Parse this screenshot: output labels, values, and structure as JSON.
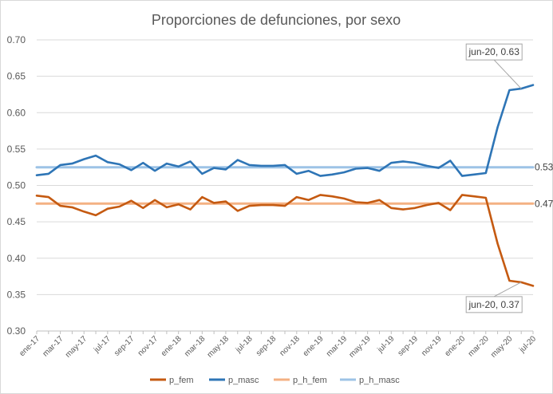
{
  "chart_data": {
    "type": "line",
    "title": "Proporciones de defunciones, por sexo",
    "xlabel": "",
    "ylabel": "",
    "ylim": [
      0.3,
      0.7
    ],
    "yticks": [
      "0.30",
      "0.35",
      "0.40",
      "0.45",
      "0.50",
      "0.55",
      "0.60",
      "0.65",
      "0.70"
    ],
    "categories": [
      "ene-17",
      "feb-17",
      "mar-17",
      "abr-17",
      "may-17",
      "jun-17",
      "jul-17",
      "ago-17",
      "sep-17",
      "oct-17",
      "nov-17",
      "dic-17",
      "ene-18",
      "feb-18",
      "mar-18",
      "abr-18",
      "may-18",
      "jun-18",
      "jul-18",
      "ago-18",
      "sep-18",
      "oct-18",
      "nov-18",
      "dic-18",
      "ene-19",
      "feb-19",
      "mar-19",
      "abr-19",
      "may-19",
      "jun-19",
      "jul-19",
      "ago-19",
      "sep-19",
      "oct-19",
      "nov-19",
      "dic-19",
      "ene-20",
      "feb-20",
      "mar-20",
      "abr-20",
      "may-20",
      "jun-20",
      "jul-20"
    ],
    "xtick_labels": [
      "ene-17",
      "mar-17",
      "may-17",
      "jul-17",
      "sep-17",
      "nov-17",
      "ene-18",
      "mar-18",
      "may-18",
      "jul-18",
      "sep-18",
      "nov-18",
      "ene-19",
      "mar-19",
      "may-19",
      "jul-19",
      "sep-19",
      "nov-19",
      "ene-20",
      "mar-20",
      "may-20",
      "jul-20"
    ],
    "series": [
      {
        "name": "p_fem",
        "color": "#c55a11",
        "values": [
          0.486,
          0.484,
          0.472,
          0.47,
          0.464,
          0.459,
          0.468,
          0.471,
          0.479,
          0.469,
          0.48,
          0.47,
          0.474,
          0.467,
          0.484,
          0.476,
          0.478,
          0.465,
          0.472,
          0.473,
          0.473,
          0.472,
          0.484,
          0.48,
          0.487,
          0.485,
          0.482,
          0.477,
          0.476,
          0.48,
          0.469,
          0.467,
          0.469,
          0.473,
          0.476,
          0.466,
          0.487,
          0.485,
          0.483,
          0.42,
          0.369,
          0.367,
          0.362
        ]
      },
      {
        "name": "p_masc",
        "color": "#2e75b6",
        "values": [
          0.514,
          0.516,
          0.528,
          0.53,
          0.536,
          0.541,
          0.532,
          0.529,
          0.521,
          0.531,
          0.52,
          0.53,
          0.526,
          0.533,
          0.516,
          0.524,
          0.522,
          0.535,
          0.528,
          0.527,
          0.527,
          0.528,
          0.516,
          0.52,
          0.513,
          0.515,
          0.518,
          0.523,
          0.524,
          0.52,
          0.531,
          0.533,
          0.531,
          0.527,
          0.524,
          0.534,
          0.513,
          0.515,
          0.517,
          0.58,
          0.631,
          0.633,
          0.638
        ]
      },
      {
        "name": "p_h_fem",
        "color": "#f4b183",
        "values": [
          0.475,
          0.475,
          0.475,
          0.475,
          0.475,
          0.475,
          0.475,
          0.475,
          0.475,
          0.475,
          0.475,
          0.475,
          0.475,
          0.475,
          0.475,
          0.475,
          0.475,
          0.475,
          0.475,
          0.475,
          0.475,
          0.475,
          0.475,
          0.475,
          0.475,
          0.475,
          0.475,
          0.475,
          0.475,
          0.475,
          0.475,
          0.475,
          0.475,
          0.475,
          0.475,
          0.475,
          0.475,
          0.475,
          0.475,
          0.475,
          0.475,
          0.475,
          0.475
        ]
      },
      {
        "name": "p_h_masc",
        "color": "#9dc3e6",
        "values": [
          0.525,
          0.525,
          0.525,
          0.525,
          0.525,
          0.525,
          0.525,
          0.525,
          0.525,
          0.525,
          0.525,
          0.525,
          0.525,
          0.525,
          0.525,
          0.525,
          0.525,
          0.525,
          0.525,
          0.525,
          0.525,
          0.525,
          0.525,
          0.525,
          0.525,
          0.525,
          0.525,
          0.525,
          0.525,
          0.525,
          0.525,
          0.525,
          0.525,
          0.525,
          0.525,
          0.525,
          0.525,
          0.525,
          0.525,
          0.525,
          0.525,
          0.525,
          0.525
        ]
      }
    ],
    "end_labels": [
      {
        "series": "p_h_masc",
        "text": "0.53"
      },
      {
        "series": "p_h_fem",
        "text": "0.47"
      }
    ],
    "annotations": [
      {
        "series": "p_masc",
        "category": "jun-20",
        "text": "jun-20, 0.63"
      },
      {
        "series": "p_fem",
        "category": "jun-20",
        "text": "jun-20, 0.37"
      }
    ],
    "legend": [
      "p_fem",
      "p_masc",
      "p_h_fem",
      "p_h_masc"
    ],
    "legend_position": "bottom",
    "grid": true
  }
}
